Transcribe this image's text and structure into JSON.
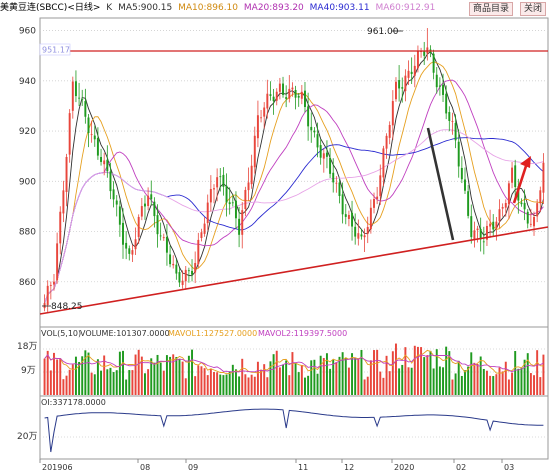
{
  "header": {
    "title": "美黄豆连(SBCC)<日线>",
    "k_label": "K",
    "ma5": "MA5:900.15",
    "ma10": "MA10:896.10",
    "ma20": "MA20:893.20",
    "ma40": "MA40:903.11",
    "ma60": "MA60:912.91",
    "info_button": "商品目录",
    "close_button": "关闭"
  },
  "colors": {
    "up": "#e8463c",
    "down": "#1f9a1f",
    "ma5": "#303030",
    "ma10": "#e6a020",
    "ma20": "#c040c0",
    "ma40": "#2a2ad0",
    "ma60": "#e7a4e7",
    "trendline": "#d02020",
    "resistance": "#d02020",
    "oi_line": "#2a3a8a"
  },
  "chart_data": [
    {
      "type": "candlestick",
      "name": "price",
      "ylim": [
        842,
        965
      ],
      "y_ticks": [
        860,
        880,
        900,
        920,
        940,
        960
      ],
      "annotations": {
        "high_label": "961.00",
        "low_label": "848.25",
        "resistance_label": "951.17",
        "resistance_value": 951.17
      },
      "x_labels": [
        "201906",
        "08",
        "09",
        "11",
        "12",
        "2020",
        "02",
        "03"
      ],
      "swing_points": [
        {
          "i": 0,
          "v": 850
        },
        {
          "i": 3,
          "v": 862
        },
        {
          "i": 9,
          "v": 938
        },
        {
          "i": 18,
          "v": 910
        },
        {
          "i": 27,
          "v": 870
        },
        {
          "i": 33,
          "v": 895
        },
        {
          "i": 42,
          "v": 860
        },
        {
          "i": 48,
          "v": 868
        },
        {
          "i": 55,
          "v": 905
        },
        {
          "i": 62,
          "v": 880
        },
        {
          "i": 68,
          "v": 925
        },
        {
          "i": 75,
          "v": 938
        },
        {
          "i": 82,
          "v": 932
        },
        {
          "i": 88,
          "v": 912
        },
        {
          "i": 96,
          "v": 888
        },
        {
          "i": 101,
          "v": 874
        },
        {
          "i": 106,
          "v": 898
        },
        {
          "i": 112,
          "v": 936
        },
        {
          "i": 117,
          "v": 946
        },
        {
          "i": 122,
          "v": 952
        },
        {
          "i": 126,
          "v": 938
        },
        {
          "i": 130,
          "v": 920
        },
        {
          "i": 136,
          "v": 882
        },
        {
          "i": 140,
          "v": 876
        },
        {
          "i": 145,
          "v": 888
        },
        {
          "i": 149,
          "v": 902
        },
        {
          "i": 152,
          "v": 888
        },
        {
          "i": 156,
          "v": 885
        },
        {
          "i": 159,
          "v": 906
        }
      ]
    },
    {
      "type": "bar",
      "name": "volume",
      "label": "VOL(5,10)",
      "volume": "VOLUME:101307.0000",
      "mavol1": "MAVOL1:127527.0000",
      "mavol2": "MAVOL2:119397.5000",
      "y_ticks": [
        "18万",
        "9万"
      ]
    },
    {
      "type": "line",
      "name": "open_interest",
      "label": "OI:337178.0000",
      "y_ticks": [
        "20万"
      ]
    }
  ]
}
